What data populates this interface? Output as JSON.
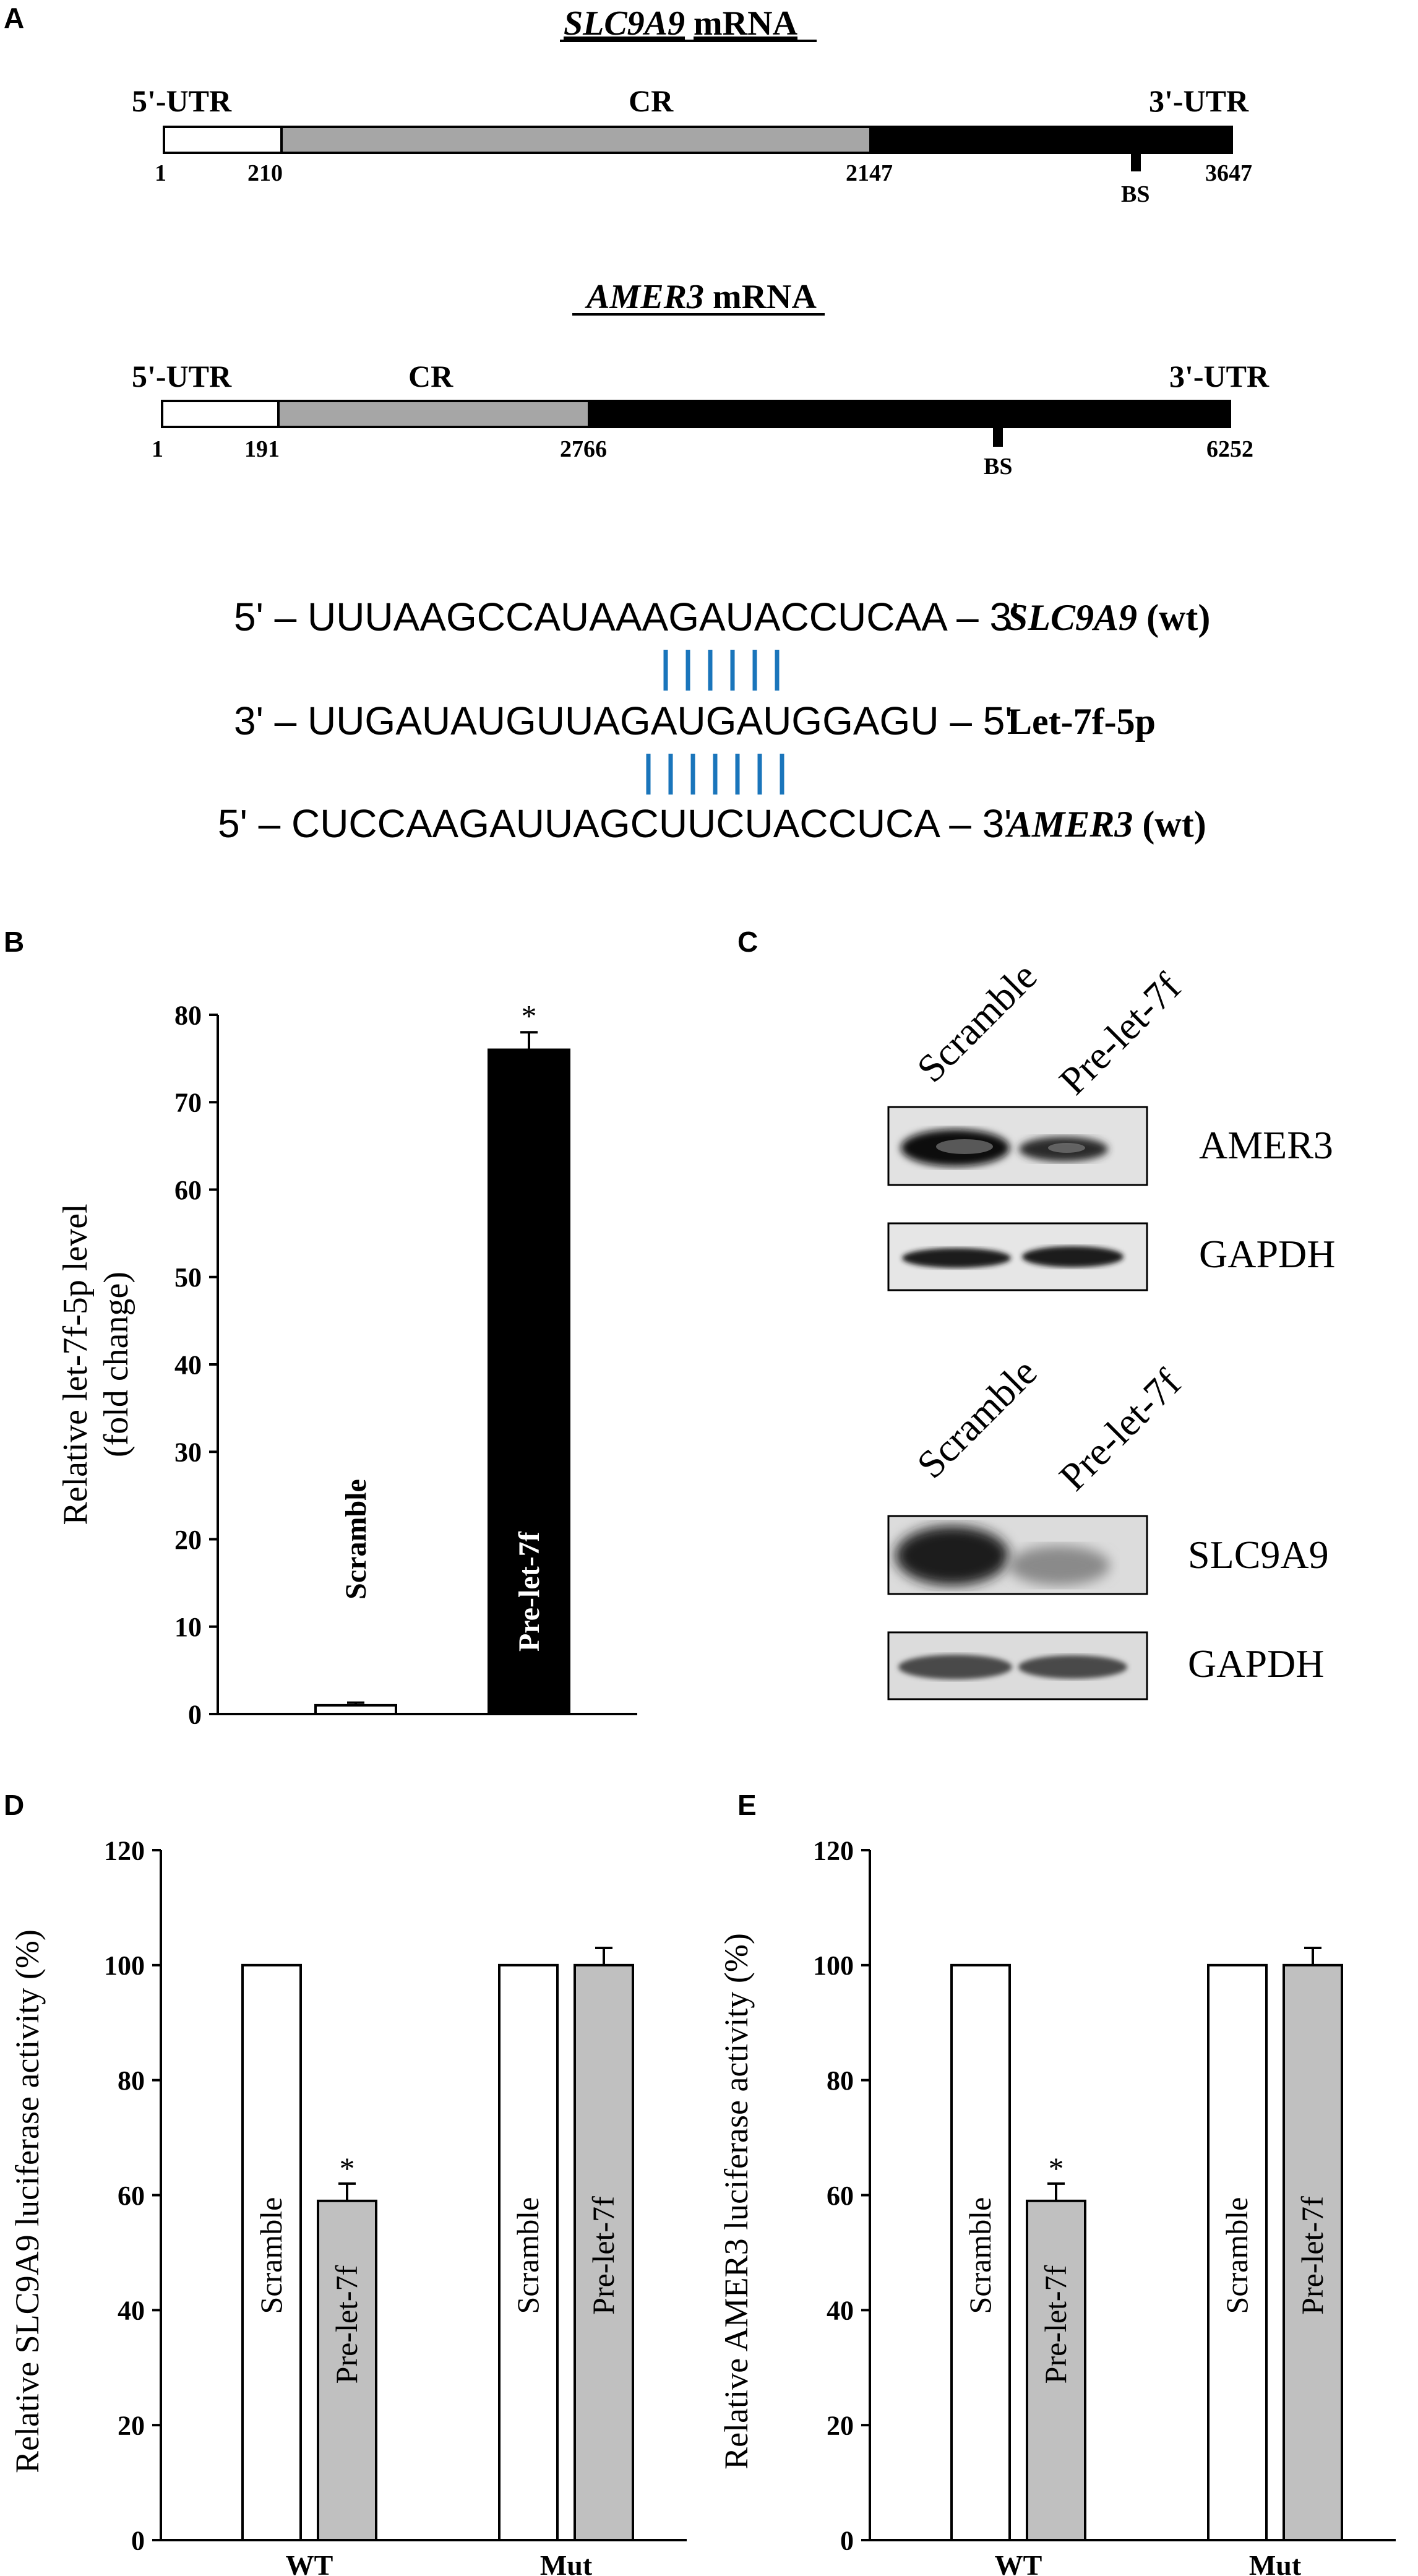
{
  "panels": {
    "a": "A",
    "b": "B",
    "c": "C",
    "d": "D",
    "e": "E"
  },
  "panel_a": {
    "genes": [
      {
        "title_gene": "SLC9A9",
        "title_suffix": "mRNA",
        "utr5": "5'-UTR",
        "cr": "CR",
        "utr3": "3'-UTR",
        "positions": [
          "1",
          "210",
          "2147",
          "3647"
        ],
        "bs": "BS"
      },
      {
        "title_gene": "AMER3",
        "title_suffix": "mRNA",
        "utr5": "5'-UTR",
        "cr": "CR",
        "utr3": "3'-UTR",
        "positions": [
          "1",
          "191",
          "2766",
          "6252"
        ],
        "bs": "BS"
      }
    ],
    "alignment": {
      "rows": [
        {
          "prefix": "5'",
          "seq": "UUUAAGCCAUAAAGAUACCUCAA",
          "suffix": "3'",
          "label_gene": "SLC9A9",
          "label_tag": "(wt)"
        },
        {
          "prefix": "3'",
          "seq": "UUGAUAUGUUAGAUGAUGGAGU",
          "suffix": "5'",
          "label_gene": "",
          "label_tag": "Let-7f-5p"
        },
        {
          "prefix": "5'",
          "seq": "CUCCAAGAUUAGCUUCUACCUCA",
          "suffix": "3'",
          "label_gene": "AMER3",
          "label_tag": "(wt)"
        }
      ],
      "pair_color": "#1a75bb",
      "pairs_count": 7
    }
  },
  "panel_c": {
    "blot1": {
      "lanes": [
        "Scramble",
        "Pre-let-7f"
      ],
      "bands": [
        "AMER3",
        "GAPDH"
      ]
    },
    "blot2": {
      "lanes": [
        "Scramble",
        "Pre-let-7f"
      ],
      "bands": [
        "SLC9A9",
        "GAPDH"
      ]
    }
  },
  "chart_data": [
    {
      "panel": "B",
      "type": "bar",
      "ylabel_line1": "Relative let-7f-5p level",
      "ylabel_line2": "(fold change)",
      "ylim": [
        0,
        80
      ],
      "yticks": [
        "0",
        "10",
        "20",
        "30",
        "40",
        "50",
        "60",
        "70",
        "80"
      ],
      "categories": [
        "Scramble",
        "Pre-let-7f"
      ],
      "values": [
        1,
        76
      ],
      "errors": [
        0.3,
        2
      ],
      "colors": [
        "#ffffff",
        "#000000"
      ],
      "significance": [
        "",
        "*"
      ]
    },
    {
      "panel": "D",
      "type": "bar",
      "ylabel": "Relative SLC9A9 luciferase activity (%)",
      "ylim": [
        0,
        120
      ],
      "yticks": [
        "0",
        "20",
        "40",
        "60",
        "80",
        "100",
        "120"
      ],
      "groups": [
        "WT",
        "Mut"
      ],
      "series": [
        {
          "name": "Scramble",
          "values": [
            100,
            100
          ],
          "errors": [
            0,
            0
          ],
          "color": "#ffffff"
        },
        {
          "name": "Pre-let-7f",
          "values": [
            59,
            100
          ],
          "errors": [
            3,
            3
          ],
          "color": "#c0c0c0"
        }
      ],
      "significance": [
        "*",
        ""
      ]
    },
    {
      "panel": "E",
      "type": "bar",
      "ylabel": "Relative AMER3 luciferase activity (%)",
      "ylim": [
        0,
        120
      ],
      "yticks": [
        "0",
        "20",
        "40",
        "60",
        "80",
        "100",
        "120"
      ],
      "groups": [
        "WT",
        "Mut"
      ],
      "series": [
        {
          "name": "Scramble",
          "values": [
            100,
            100
          ],
          "errors": [
            0,
            0
          ],
          "color": "#ffffff"
        },
        {
          "name": "Pre-let-7f",
          "values": [
            59,
            100
          ],
          "errors": [
            3,
            3
          ],
          "color": "#c0c0c0"
        }
      ],
      "significance": [
        "*",
        ""
      ]
    }
  ]
}
